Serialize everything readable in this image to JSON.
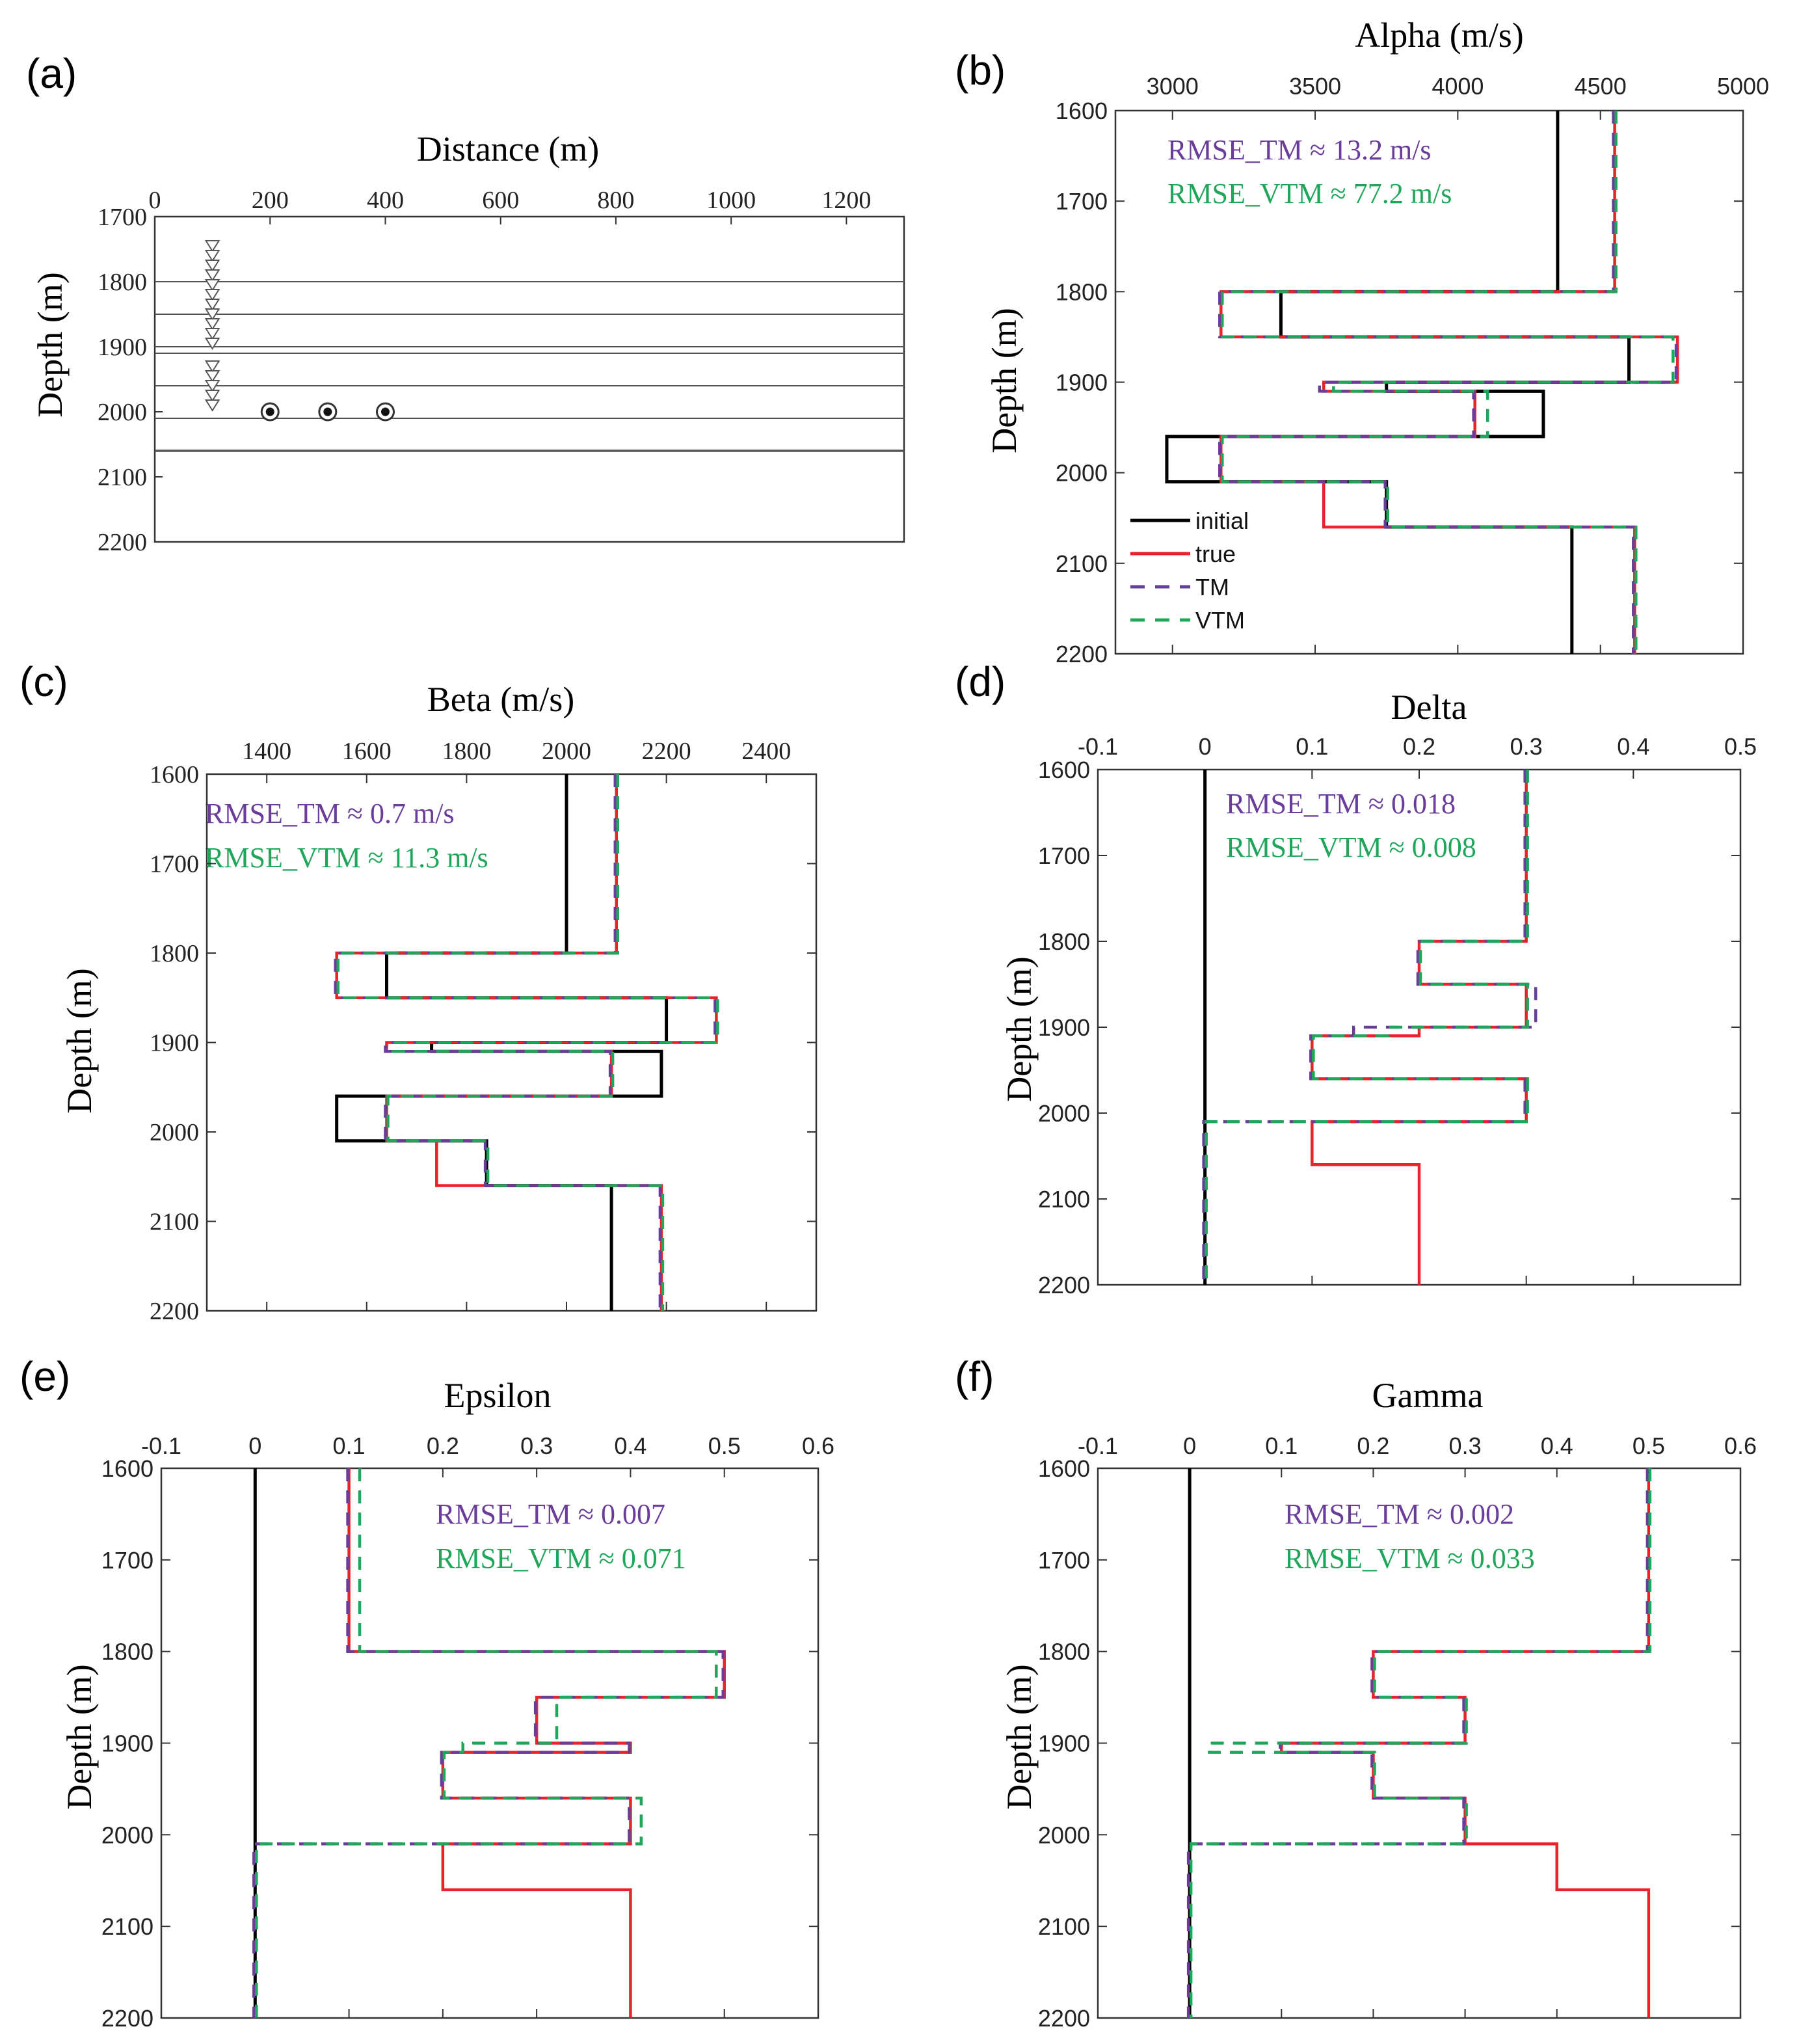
{
  "colors": {
    "initial": "#000000",
    "true": "#e8232b",
    "TM": "#6a3d9a",
    "VTM": "#1fa65a",
    "layer": "#555555",
    "receiver": "#555555",
    "axis": "#333333"
  },
  "panel_a": {
    "label": "(a)",
    "title": "Distance (m)",
    "ylabel": "Depth (m)",
    "xlim": [
      0,
      1300
    ],
    "ylim": [
      1700,
      2200
    ],
    "xticks": [
      0,
      200,
      400,
      600,
      800,
      1000,
      1200
    ],
    "yticks": [
      1700,
      1800,
      1900,
      2000,
      2100,
      2200
    ],
    "layers": [
      1800,
      1850,
      1900,
      1910,
      1960,
      2010,
      2060
    ],
    "receivers": {
      "x": 100,
      "depths": [
        1745,
        1760,
        1775,
        1790,
        1805,
        1820,
        1835,
        1850,
        1865,
        1880,
        1895,
        1930,
        1945,
        1960,
        1975,
        1990
      ]
    },
    "sources": {
      "depth": 2000,
      "x": [
        200,
        300,
        400
      ]
    }
  },
  "chart_data": [
    {
      "type": "line",
      "panel": "b",
      "label": "(b)",
      "title": "Alpha (m/s)",
      "ylabel": "Depth (m)",
      "xlim": [
        2800,
        5000
      ],
      "ylim": [
        1600,
        2200
      ],
      "xticks": [
        3000,
        3500,
        4000,
        4500,
        5000
      ],
      "yticks": [
        1600,
        1700,
        1800,
        1900,
        2000,
        2100,
        2200
      ],
      "layer_boundaries": [
        1600,
        1800,
        1850,
        1900,
        1910,
        1960,
        2010,
        2060,
        2200
      ],
      "series": [
        {
          "name": "initial",
          "values": [
            4350,
            3380,
            4600,
            3750,
            4300,
            2980,
            3750,
            4400
          ]
        },
        {
          "name": "true",
          "values": [
            4550,
            3170,
            4770,
            3530,
            4060,
            3170,
            3530,
            4620
          ]
        },
        {
          "name": "TM",
          "values": [
            4550,
            3170,
            4770,
            3520,
            4060,
            3170,
            3750,
            4620
          ]
        },
        {
          "name": "VTM",
          "values": [
            4550,
            3170,
            4750,
            3560,
            4100,
            3170,
            3750,
            4620
          ]
        }
      ],
      "annotations": {
        "tm": "RMSE_TM ≈ 13.2 m/s",
        "vtm": "RMSE_VTM ≈ 77.2 m/s"
      },
      "legend": [
        "initial",
        "true",
        "TM",
        "VTM"
      ]
    },
    {
      "type": "line",
      "panel": "c",
      "label": "(c)",
      "title": "Beta (m/s)",
      "ylabel": "Depth (m)",
      "xlim": [
        1280,
        2500
      ],
      "ylim": [
        1600,
        2200
      ],
      "xticks": [
        1400,
        1600,
        1800,
        2000,
        2200,
        2400
      ],
      "yticks": [
        1600,
        1700,
        1800,
        1900,
        2000,
        2100,
        2200
      ],
      "layer_boundaries": [
        1600,
        1800,
        1850,
        1900,
        1910,
        1960,
        2010,
        2060,
        2200
      ],
      "series": [
        {
          "name": "initial",
          "values": [
            2000,
            1640,
            2200,
            1730,
            2190,
            1540,
            1840,
            2090
          ]
        },
        {
          "name": "true",
          "values": [
            2100,
            1540,
            2300,
            1640,
            2090,
            1640,
            1740,
            2190
          ]
        },
        {
          "name": "TM",
          "values": [
            2100,
            1540,
            2300,
            1640,
            2090,
            1640,
            1840,
            2190
          ]
        },
        {
          "name": "VTM",
          "values": [
            2100,
            1540,
            2300,
            1650,
            2090,
            1640,
            1840,
            2190
          ]
        }
      ],
      "annotations": {
        "tm": "RMSE_TM ≈ 0.7 m/s",
        "vtm": "RMSE_VTM ≈ 11.3 m/s"
      }
    },
    {
      "type": "line",
      "panel": "d",
      "label": "(d)",
      "title": "Delta",
      "ylabel": "Depth (m)",
      "xlim": [
        -0.1,
        0.5
      ],
      "ylim": [
        1600,
        2200
      ],
      "xticks": [
        -0.1,
        0,
        0.1,
        0.2,
        0.3,
        0.4,
        0.5
      ],
      "yticks": [
        1600,
        1700,
        1800,
        1900,
        2000,
        2100,
        2200
      ],
      "layer_boundaries": [
        1600,
        1800,
        1850,
        1900,
        1910,
        1960,
        2010,
        2060,
        2200
      ],
      "series": [
        {
          "name": "initial",
          "values": [
            0,
            0,
            0,
            0,
            0,
            0,
            0,
            0
          ]
        },
        {
          "name": "true",
          "values": [
            0.3,
            0.2,
            0.3,
            0.2,
            0.1,
            0.3,
            0.1,
            0.2
          ]
        },
        {
          "name": "TM",
          "values": [
            0.3,
            0.2,
            0.31,
            0.14,
            0.1,
            0.3,
            0.0,
            0.0
          ]
        },
        {
          "name": "VTM",
          "values": [
            0.3,
            0.2,
            0.3,
            0.17,
            0.1,
            0.3,
            0.0,
            0.0
          ]
        }
      ],
      "annotations": {
        "tm": "RMSE_TM ≈ 0.018",
        "vtm": "RMSE_VTM ≈ 0.008"
      }
    },
    {
      "type": "line",
      "panel": "e",
      "label": "(e)",
      "title": "Epsilon",
      "ylabel": "Depth (m)",
      "xlim": [
        -0.1,
        0.6
      ],
      "ylim": [
        1600,
        2200
      ],
      "xticks": [
        -0.1,
        0,
        0.1,
        0.2,
        0.3,
        0.4,
        0.5,
        0.6
      ],
      "yticks": [
        1600,
        1700,
        1800,
        1900,
        2000,
        2100,
        2200
      ],
      "layer_boundaries": [
        1600,
        1800,
        1850,
        1900,
        1910,
        1960,
        2010,
        2060,
        2200
      ],
      "series": [
        {
          "name": "initial",
          "values": [
            0,
            0,
            0,
            0,
            0,
            0,
            0,
            0
          ]
        },
        {
          "name": "true",
          "values": [
            0.1,
            0.5,
            0.3,
            0.4,
            0.2,
            0.4,
            0.2,
            0.4
          ]
        },
        {
          "name": "TM",
          "values": [
            0.1,
            0.5,
            0.3,
            0.4,
            0.2,
            0.4,
            0.0,
            0.0
          ]
        },
        {
          "name": "VTM",
          "values": [
            0.11,
            0.49,
            0.32,
            0.22,
            0.2,
            0.41,
            0.0,
            0.0
          ]
        }
      ],
      "annotations": {
        "tm": "RMSE_TM ≈ 0.007",
        "vtm": "RMSE_VTM ≈ 0.071"
      }
    },
    {
      "type": "line",
      "panel": "f",
      "label": "(f)",
      "title": "Gamma",
      "ylabel": "Depth (m)",
      "xlim": [
        -0.1,
        0.6
      ],
      "ylim": [
        1600,
        2200
      ],
      "xticks": [
        -0.1,
        0,
        0.1,
        0.2,
        0.3,
        0.4,
        0.5,
        0.6
      ],
      "yticks": [
        1600,
        1700,
        1800,
        1900,
        2000,
        2100,
        2200
      ],
      "layer_boundaries": [
        1600,
        1800,
        1850,
        1900,
        1910,
        1960,
        2010,
        2060,
        2200
      ],
      "series": [
        {
          "name": "initial",
          "values": [
            0,
            0,
            0,
            0,
            0,
            0,
            0,
            0
          ]
        },
        {
          "name": "true",
          "values": [
            0.5,
            0.2,
            0.3,
            0.1,
            0.2,
            0.3,
            0.4,
            0.5
          ]
        },
        {
          "name": "TM",
          "values": [
            0.5,
            0.2,
            0.3,
            0.1,
            0.2,
            0.3,
            0.0,
            0.0
          ]
        },
        {
          "name": "VTM",
          "values": [
            0.5,
            0.2,
            0.3,
            0.02,
            0.2,
            0.3,
            0.0,
            0.0
          ]
        }
      ],
      "annotations": {
        "tm": "RMSE_TM ≈ 0.002",
        "vtm": "RMSE_VTM ≈ 0.033"
      }
    }
  ]
}
